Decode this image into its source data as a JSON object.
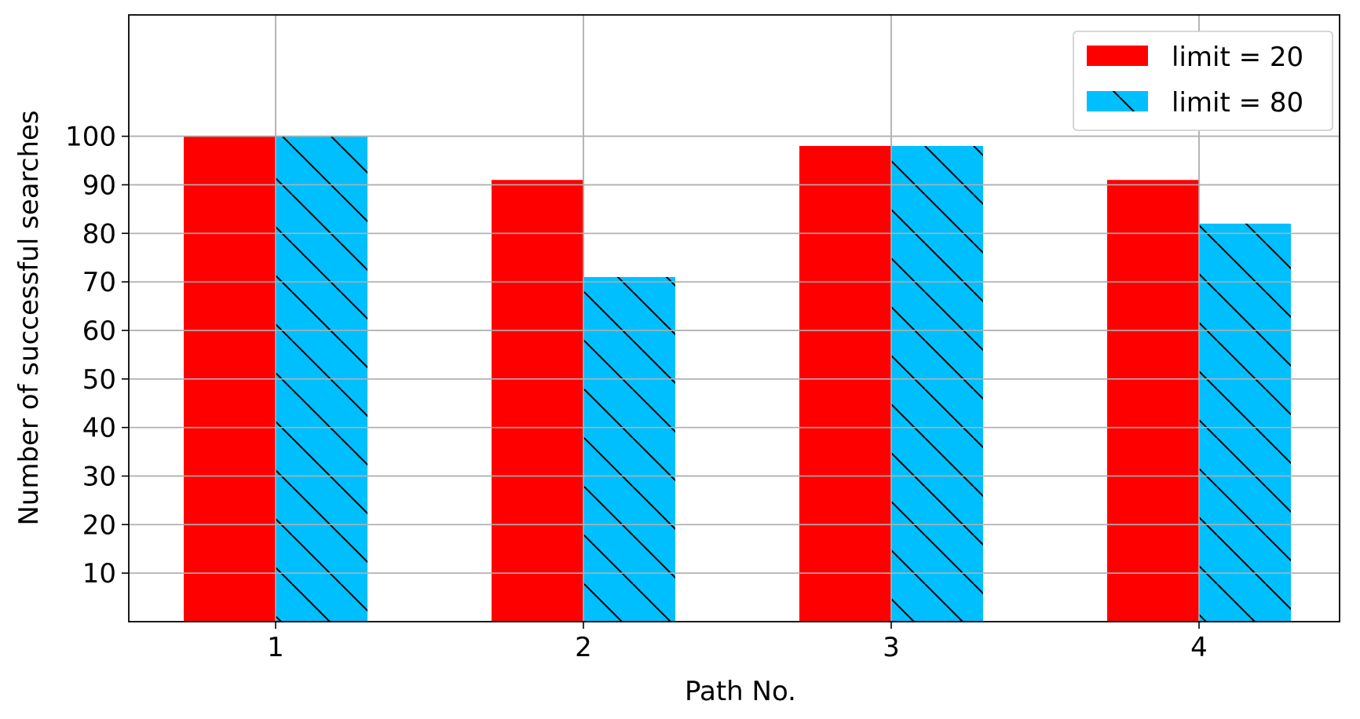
{
  "chart_data": {
    "type": "bar",
    "categories": [
      "1",
      "2",
      "3",
      "4"
    ],
    "series": [
      {
        "name": "limit = 20",
        "values": [
          100,
          91,
          98,
          91
        ],
        "color": "#ff0000",
        "hatch": "none"
      },
      {
        "name": "limit = 80",
        "values": [
          100,
          71,
          98,
          82
        ],
        "color": "#00bfff",
        "hatch": "backslash"
      }
    ],
    "xlabel": "Path No.",
    "ylabel": "Number of successful searches",
    "ylim": [
      0,
      125
    ],
    "yticks": [
      10,
      20,
      30,
      40,
      50,
      60,
      70,
      80,
      90,
      100
    ],
    "grid": true,
    "legend_position": "top-right"
  }
}
